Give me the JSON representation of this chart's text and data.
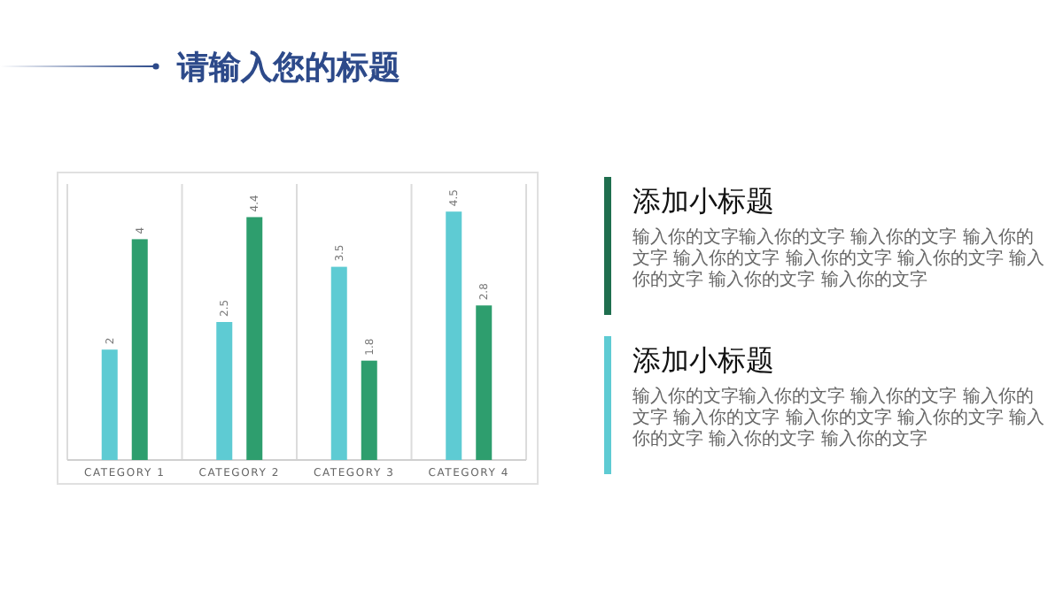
{
  "chart_data": [
    {
      "type": "bar",
      "title": "请输入您的标题",
      "categories": [
        "CATEGORY 1",
        "CATEGORY 2",
        "CATEGORY 3",
        "CATEGORY 4"
      ],
      "series": [
        {
          "color": "#5ecbd3",
          "values": [
            2,
            2.5,
            3.5,
            4.5
          ]
        },
        {
          "color": "#2e9e6e",
          "values": [
            4,
            4.4,
            1.8,
            2.8
          ]
        }
      ],
      "data_labels": true,
      "grid": "x"
    },
    {
      "type": "other",
      "title": "添加小标题",
      "annotations": [
        "输入你的文字输入你的文字 输入你的文字 输入你的文字 输入你的文字 输入你的文字 输入你的文字 输入你的文字 输入你的文字 输入你的文字"
      ],
      "color": "#1f6e4e"
    },
    {
      "type": "other",
      "title": "添加小标题",
      "annotations": [
        "输入你的文字输入你的文字 输入你的文字 输入你的文字 输入你的文字 输入你的文字 输入你的文字 输入你的文字 输入你的文字 输入你的文字"
      ],
      "color": "#5ecbd3"
    }
  ]
}
